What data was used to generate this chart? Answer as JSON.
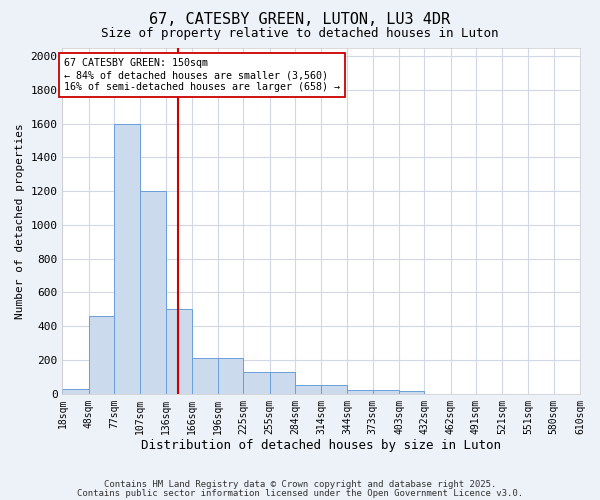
{
  "title1": "67, CATESBY GREEN, LUTON, LU3 4DR",
  "title2": "Size of property relative to detached houses in Luton",
  "xlabel": "Distribution of detached houses by size in Luton",
  "ylabel": "Number of detached properties",
  "bin_edges": [
    18,
    48,
    77,
    107,
    136,
    166,
    196,
    225,
    255,
    284,
    314,
    344,
    373,
    403,
    432,
    462,
    491,
    521,
    551,
    580,
    610
  ],
  "bar_heights": [
    30,
    460,
    1600,
    1200,
    500,
    210,
    210,
    130,
    130,
    50,
    50,
    20,
    20,
    15,
    0,
    0,
    0,
    0,
    0,
    0
  ],
  "bar_color": "#ccdaee",
  "bar_edge_color": "#6a9fd8",
  "red_line_x": 150,
  "annotation_line1": "67 CATESBY GREEN: 150sqm",
  "annotation_line2": "← 84% of detached houses are smaller (3,560)",
  "annotation_line3": "16% of semi-detached houses are larger (658) →",
  "annotation_box_color": "#ffffff",
  "annotation_box_edge": "#cc0000",
  "ylim": [
    0,
    2050
  ],
  "yticks": [
    0,
    200,
    400,
    600,
    800,
    1000,
    1200,
    1400,
    1600,
    1800,
    2000
  ],
  "plot_bg": "#ffffff",
  "fig_bg": "#edf2f9",
  "grid_color": "#d0d8e8",
  "footer1": "Contains HM Land Registry data © Crown copyright and database right 2025.",
  "footer2": "Contains public sector information licensed under the Open Government Licence v3.0."
}
